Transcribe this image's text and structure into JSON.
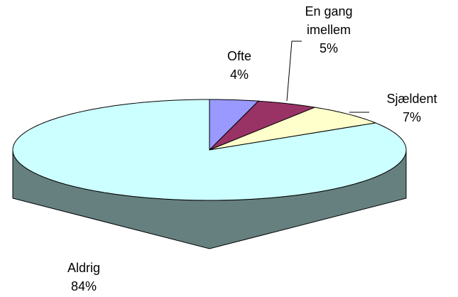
{
  "chart_data": {
    "type": "pie",
    "three_d": true,
    "categories": [
      "Ofte",
      "En gang imellem",
      "Sjældent",
      "Aldrig"
    ],
    "values": [
      4,
      5,
      7,
      84
    ],
    "value_labels": [
      "4%",
      "5%",
      "7%",
      "84%"
    ],
    "colors": [
      "#9999ff",
      "#993366",
      "#ffffcc",
      "#ccffff"
    ]
  }
}
